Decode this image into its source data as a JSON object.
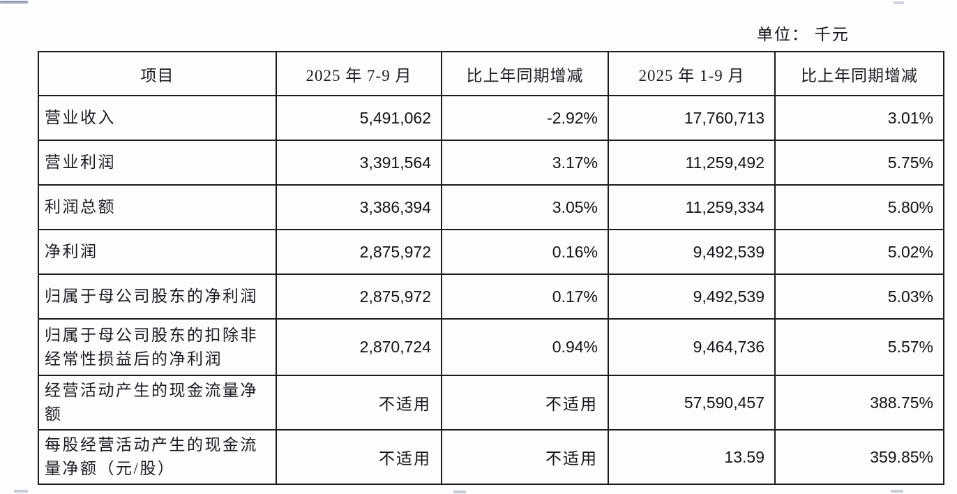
{
  "unit_label": "单位： 千元",
  "table": {
    "columns": {
      "item": "项目",
      "q3_2025": "2025 年 7-9 月",
      "q3_yoy": "比上年同期增减",
      "ytd_2025": "2025 年 1-9 月",
      "ytd_yoy": "比上年同期增减"
    },
    "rows": [
      {
        "label": "营业收入",
        "q3": "5,491,062",
        "q3_yoy": "-2.92%",
        "ytd": "17,760,713",
        "ytd_yoy": "3.01%"
      },
      {
        "label": "营业利润",
        "q3": "3,391,564",
        "q3_yoy": "3.17%",
        "ytd": "11,259,492",
        "ytd_yoy": "5.75%"
      },
      {
        "label": "利润总额",
        "q3": "3,386,394",
        "q3_yoy": "3.05%",
        "ytd": "11,259,334",
        "ytd_yoy": "5.80%"
      },
      {
        "label": "净利润",
        "q3": "2,875,972",
        "q3_yoy": "0.16%",
        "ytd": "9,492,539",
        "ytd_yoy": "5.02%"
      },
      {
        "label": "归属于母公司股东的净利润",
        "q3": "2,875,972",
        "q3_yoy": "0.17%",
        "ytd": "9,492,539",
        "ytd_yoy": "5.03%"
      },
      {
        "label": "归属于母公司股东的扣除非\n经常性损益后的净利润",
        "q3": "2,870,724",
        "q3_yoy": "0.94%",
        "ytd": "9,464,736",
        "ytd_yoy": "5.57%"
      },
      {
        "label": "经营活动产生的现金流量净\n额",
        "q3": "不适用",
        "q3_yoy": "不适用",
        "ytd": "57,590,457",
        "ytd_yoy": "388.75%"
      },
      {
        "label": "每股经营活动产生的现金流\n量净额（元/股）",
        "q3": "不适用",
        "q3_yoy": "不适用",
        "ytd": "13.59",
        "ytd_yoy": "359.85%"
      }
    ]
  }
}
